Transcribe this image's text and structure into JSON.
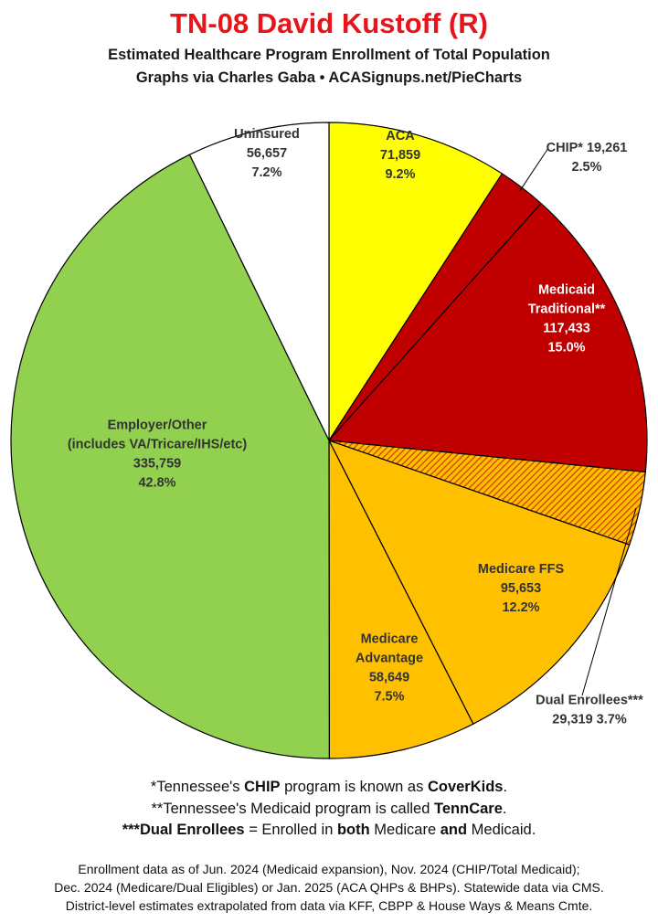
{
  "header": {
    "title": "TN-08 David Kustoff (R)",
    "subtitle_line1": "Estimated Healthcare Program Enrollment of Total Population",
    "subtitle_line2": "Graphs via Charles Gaba  •  ACASignups.net/PieCharts"
  },
  "chart_data": {
    "type": "pie",
    "title": "TN-08 David Kustoff (R)",
    "start": "12 o'clock, clockwise",
    "slices": [
      {
        "label": "ACA",
        "value": 71859,
        "percent": "9.2%",
        "color": "#ffff00",
        "label_color": "#333333",
        "lines": [
          "ACA",
          "71,859",
          "9.2%"
        ]
      },
      {
        "label": "CHIP*",
        "value": 19261,
        "percent": "2.5%",
        "color": "#c00000",
        "label_color": "#333333",
        "lines": [
          "CHIP* 19,261",
          "2.5%"
        ],
        "callout": true
      },
      {
        "label": "Medicaid Traditional**",
        "value": 117433,
        "percent": "15.0%",
        "color": "#c00000",
        "label_color": "#ffffff",
        "lines": [
          "Medicaid",
          "Traditional**",
          "117,433",
          "15.0%"
        ]
      },
      {
        "label": "Dual Enrollees***",
        "value": 29319,
        "percent": "3.7%",
        "color": "#e06400",
        "pattern": "hatch",
        "label_color": "#333333",
        "lines": [
          "Dual Enrollees***",
          "29,319 3.7%"
        ],
        "callout": true
      },
      {
        "label": "Medicare FFS",
        "value": 95653,
        "percent": "12.2%",
        "color": "#ffc000",
        "label_color": "#333333",
        "lines": [
          "Medicare FFS",
          "95,653",
          "12.2%"
        ]
      },
      {
        "label": "Medicare Advantage",
        "value": 58649,
        "percent": "7.5%",
        "color": "#ffc000",
        "label_color": "#333333",
        "lines": [
          "Medicare",
          "Advantage",
          "58,649",
          "7.5%"
        ]
      },
      {
        "label": "Employer/Other (includes VA/Tricare/IHS/etc)",
        "value": 335759,
        "percent": "42.8%",
        "color": "#92d050",
        "label_color": "#333333",
        "lines": [
          "Employer/Other",
          "(includes VA/Tricare/IHS/etc)",
          "335,759",
          "42.8%"
        ]
      },
      {
        "label": "Uninsured",
        "value": 56657,
        "percent": "7.2%",
        "color": "#ffffff",
        "label_color": "#333333",
        "lines": [
          "Uninsured",
          "56,657",
          "7.2%"
        ]
      }
    ]
  },
  "notes": {
    "n1_pre": "*Tennessee's ",
    "n1_b1": "CHIP",
    "n1_mid": " program is known as ",
    "n1_b2": "CoverKids",
    "n1_end": ".",
    "n2_pre": "**Tennessee's Medicaid program is called ",
    "n2_b1": "TennCare",
    "n2_end": ".",
    "n3_b1": "***Dual Enrollees",
    "n3_mid1": " = Enrolled in ",
    "n3_b2": "both",
    "n3_mid2": " Medicare ",
    "n3_b3": "and",
    "n3_end": " Medicaid."
  },
  "source": {
    "line1": "Enrollment data as of Jun. 2024 (Medicaid expansion), Nov. 2024 (CHIP/Total Medicaid);",
    "line2": "Dec. 2024 (Medicare/Dual Eligibles) or Jan. 2025 (ACA QHPs & BHPs). Statewide data via CMS.",
    "line3": "District-level estimates extrapolated from data via KFF, CBPP & House Ways & Means Cmte."
  }
}
